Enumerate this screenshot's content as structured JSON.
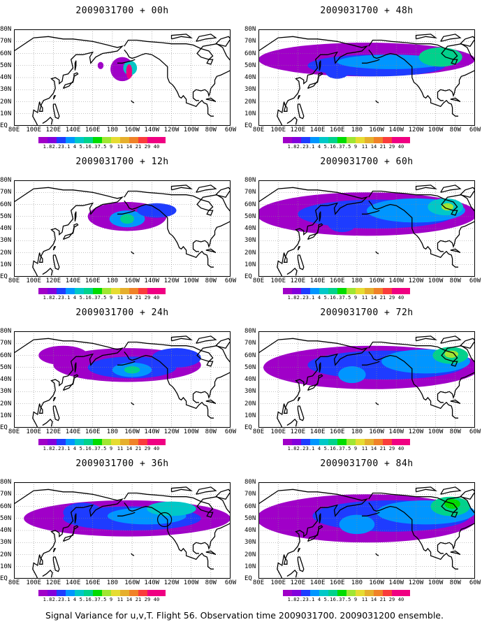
{
  "panels": [
    {
      "title": "2009031700 + 00h"
    },
    {
      "title": "2009031700 + 48h"
    },
    {
      "title": "2009031700 + 12h"
    },
    {
      "title": "2009031700 + 60h"
    },
    {
      "title": "2009031700 + 24h"
    },
    {
      "title": "2009031700 + 72h"
    },
    {
      "title": "2009031700 + 36h"
    },
    {
      "title": "2009031700 + 84h"
    }
  ],
  "map": {
    "lat_labels": [
      "80N",
      "70N",
      "60N",
      "50N",
      "40N",
      "30N",
      "20N",
      "10N",
      "EQ"
    ],
    "lon_labels": [
      "80E",
      "100E",
      "120E",
      "140E",
      "160E",
      "180",
      "160W",
      "140W",
      "120W",
      "100W",
      "80W",
      "60W"
    ]
  },
  "colorbar": {
    "labels": [
      "1.8",
      "2.2",
      "3.1",
      "4",
      "5.1",
      "6.3",
      "7.5",
      "9",
      "11",
      "14",
      "21",
      "29",
      "40"
    ],
    "colors": [
      "#a000c8",
      "#8200dc",
      "#1e3cff",
      "#0096ff",
      "#00c8c8",
      "#00d28c",
      "#00dc00",
      "#a0e632",
      "#e6dc32",
      "#e6af2d",
      "#f08228",
      "#fa3c3c",
      "#f00082"
    ]
  },
  "caption": "Signal Variance for u,v,T. Flight 56. Observation time 2009031700. 2009031200 ensemble."
}
